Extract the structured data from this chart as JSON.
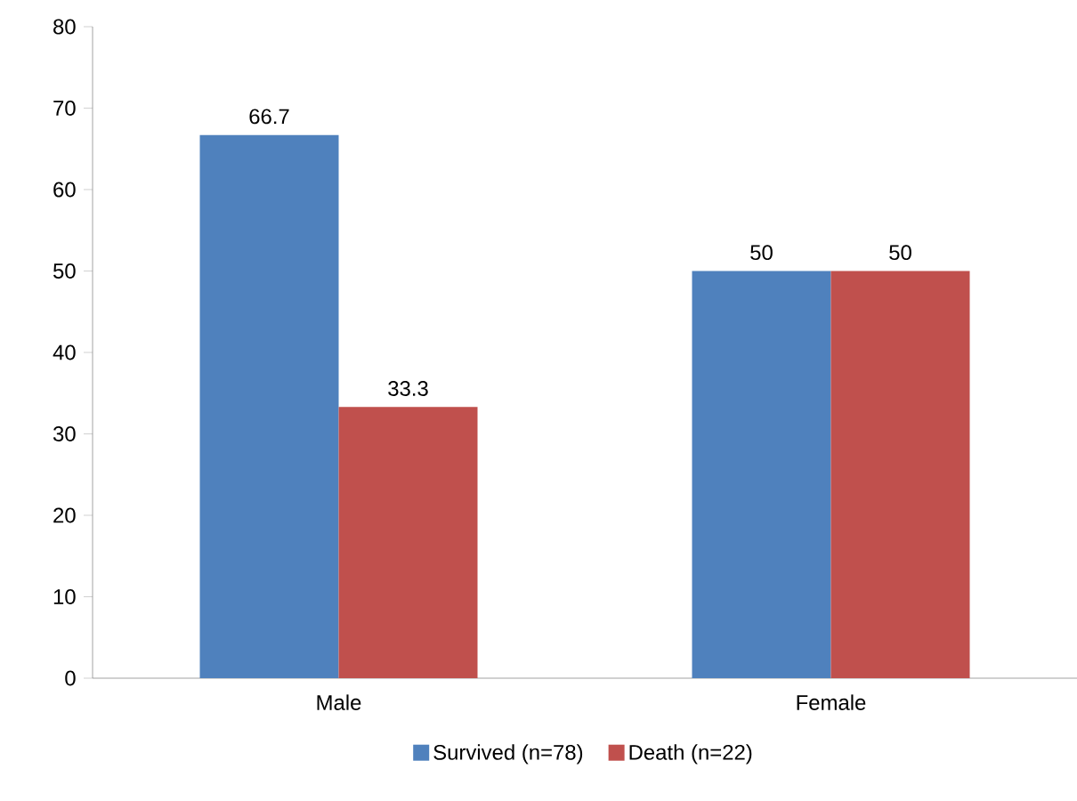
{
  "chart_data": {
    "type": "bar",
    "categories": [
      "Male",
      "Female"
    ],
    "series": [
      {
        "name": "Survived (n=78)",
        "color": "#4f81bd",
        "values": [
          66.7,
          50
        ]
      },
      {
        "name": "Death (n=22)",
        "color": "#c0504d",
        "values": [
          33.3,
          50
        ]
      }
    ],
    "ylim": [
      0,
      80
    ],
    "yticks": [
      0,
      10,
      20,
      30,
      40,
      50,
      60,
      70,
      80
    ],
    "data_labels": true,
    "legend": "bottom",
    "grid": false
  }
}
